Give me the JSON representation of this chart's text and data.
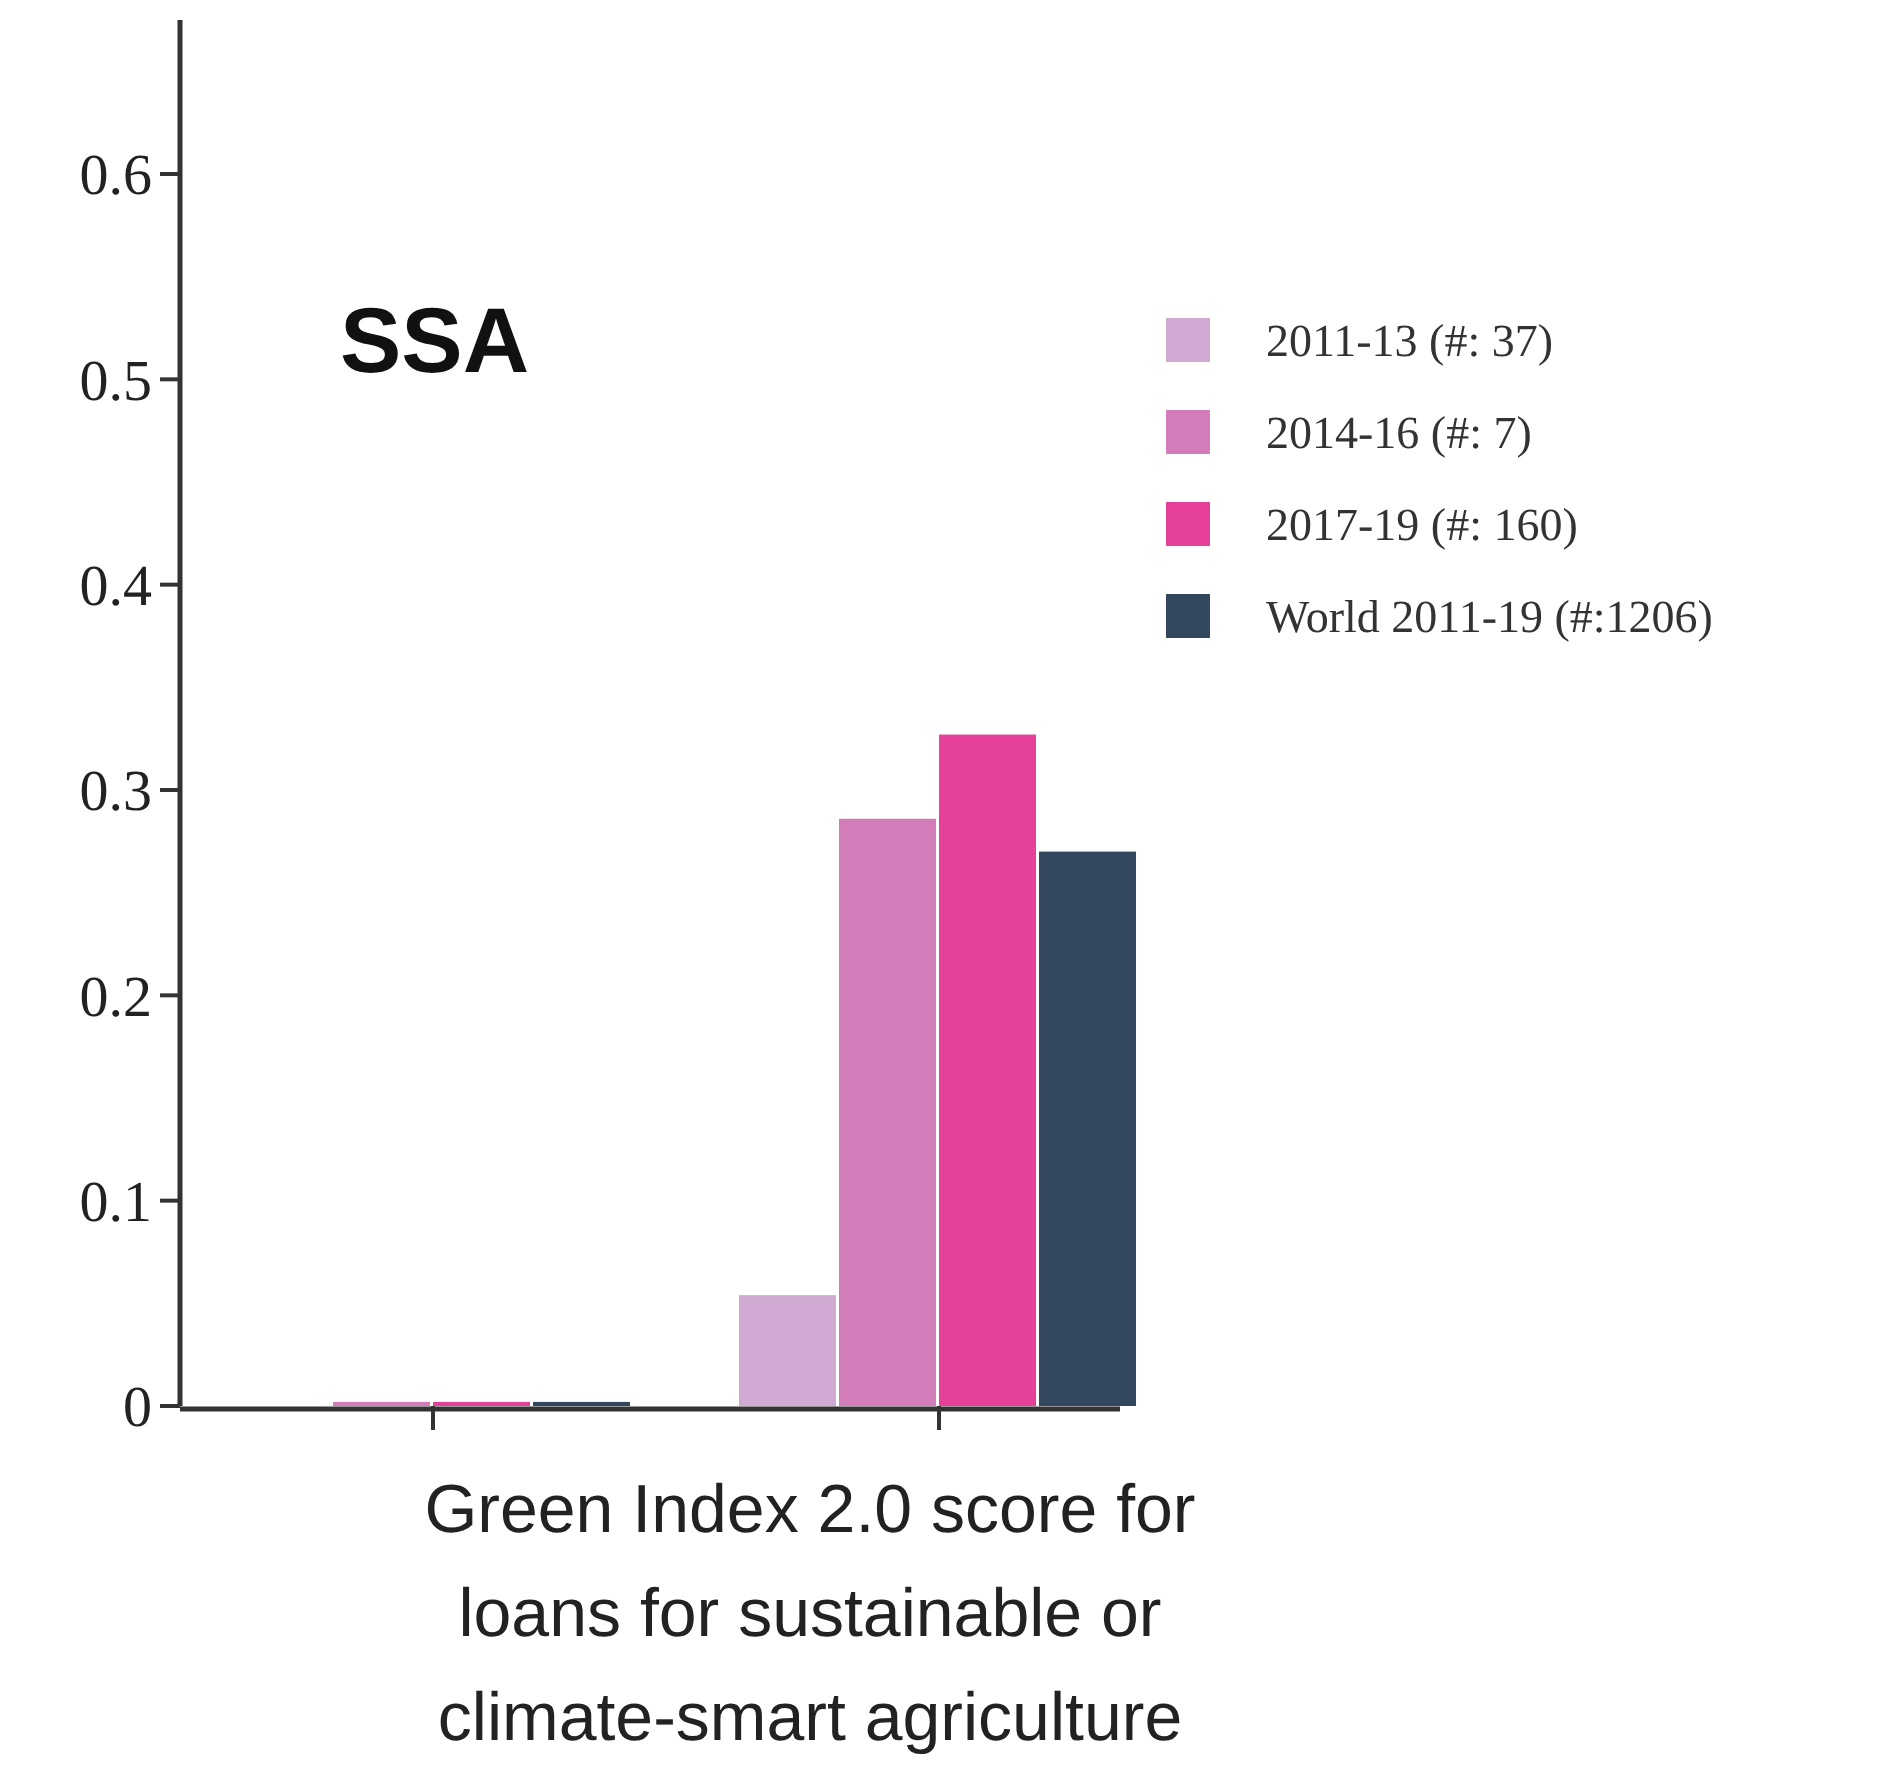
{
  "chart_data": {
    "type": "bar",
    "title": "SSA",
    "xlabel": "Green Index 2.0 score for loans for sustainable or climate-smart agriculture",
    "categories": [
      null,
      null
    ],
    "series": [
      {
        "name": "2011-13 (#: 37)",
        "color": "#d1aad4",
        "values": [
          0,
          0.054
        ]
      },
      {
        "name": "2014-16 (#: 7)",
        "color": "#d27dba",
        "values": [
          0.002,
          0.286
        ]
      },
      {
        "name": "2017-19 (#: 160)",
        "color": "#e5409a",
        "values": [
          0.002,
          0.327
        ]
      },
      {
        "name": "World 2011-19 (#:1206)",
        "color": "#33475e",
        "values": [
          0.002,
          0.27
        ]
      }
    ],
    "ylim": [
      0,
      0.675
    ],
    "yticks": [
      0,
      0.1,
      0.2,
      0.3,
      0.4,
      0.5,
      0.6
    ],
    "grid": false,
    "legend": "right"
  }
}
